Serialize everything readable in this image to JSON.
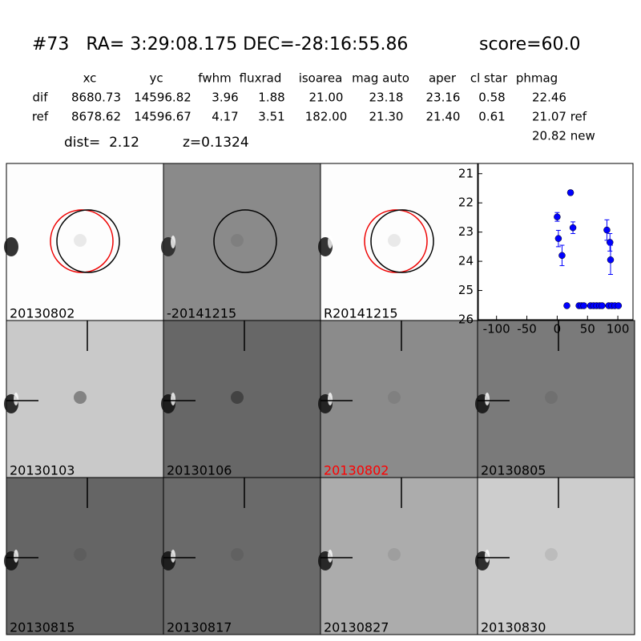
{
  "header": {
    "title": "#73   RA= 3:29:08.175 DEC=-28:16:55.86",
    "score": "score=60.0"
  },
  "table": {
    "columns": [
      "xc",
      "yc",
      "fwhm",
      "fluxrad",
      "isoarea",
      "mag auto",
      "aper",
      "cl star",
      "phmag"
    ],
    "rows": [
      [
        "dif",
        "8680.73",
        "14596.82",
        "3.96",
        "1.88",
        "21.00",
        "23.18",
        "23.16",
        "0.58",
        "22.46"
      ],
      [
        "ref",
        "8678.62",
        "14596.67",
        "4.17",
        "3.51",
        "182.00",
        "21.30",
        "21.40",
        "0.61",
        "21.07 ref"
      ]
    ],
    "extra": "20.82 new",
    "dist": "dist=  2.12",
    "z": "z=0.1324"
  },
  "panels": [
    {
      "label": "20130802",
      "color": "#000000"
    },
    {
      "label": "-20141215",
      "color": "#000000"
    },
    {
      "label": "R20141215",
      "color": "#000000"
    },
    {
      "label": "20130103",
      "color": "#000000"
    },
    {
      "label": "20130106",
      "color": "#000000"
    },
    {
      "label": "20130802",
      "color": "#ff0000"
    },
    {
      "label": "20130805",
      "color": "#000000"
    },
    {
      "label": "20130815",
      "color": "#000000"
    },
    {
      "label": "20130817",
      "color": "#000000"
    },
    {
      "label": "20130827",
      "color": "#000000"
    },
    {
      "label": "20130830",
      "color": "#000000"
    }
  ],
  "chart_data": {
    "type": "scatter",
    "color": "#0000ff",
    "x": [
      0,
      2,
      8,
      16,
      22,
      26,
      36,
      40,
      44,
      55,
      60,
      65,
      70,
      74,
      82,
      85,
      87,
      88,
      90,
      95,
      101
    ],
    "values": [
      22.48,
      23.22,
      23.8,
      25.52,
      21.65,
      22.85,
      25.52,
      25.52,
      25.52,
      25.52,
      25.52,
      25.52,
      25.52,
      25.52,
      22.93,
      25.52,
      23.35,
      23.95,
      25.52,
      25.52,
      25.52
    ],
    "errors": [
      0.15,
      0.28,
      0.35,
      0.06,
      0.08,
      0.2,
      0.06,
      0.06,
      0.06,
      0.06,
      0.06,
      0.06,
      0.06,
      0.06,
      0.35,
      0.06,
      0.3,
      0.5,
      0.06,
      0.06,
      0.06
    ],
    "xlim": [
      -130,
      125
    ],
    "ylim": [
      26,
      20.65
    ],
    "xticks": [
      -100,
      -50,
      0,
      50,
      100
    ],
    "yticks": [
      21,
      22,
      23,
      24,
      25,
      26
    ]
  }
}
